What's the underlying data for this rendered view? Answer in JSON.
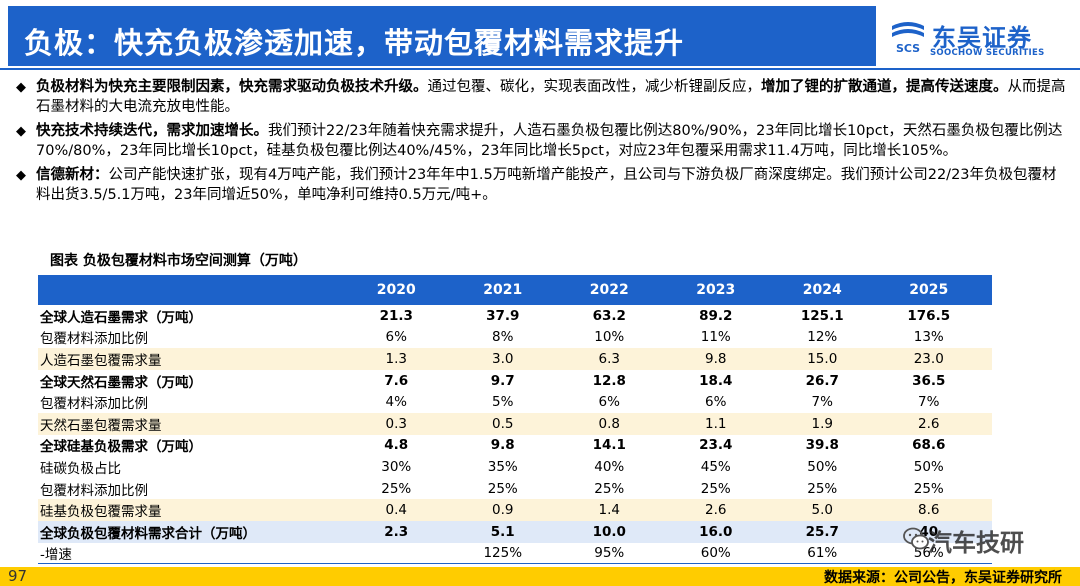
{
  "header": {
    "title": "负极：快充负极渗透加速，带动包覆材料需求提升",
    "logo_cn": "东吴证券",
    "logo_en": "SOOCHOW SECURITIES",
    "logo_mark_text": "SCS"
  },
  "bullets": [
    {
      "parts": [
        {
          "text": "负极材料为快充主要限制因素，快充需求驱动负极技术升级。",
          "bold": true
        },
        {
          "text": "通过包覆、碳化，实现表面改性，减少析锂副反应，",
          "bold": false
        },
        {
          "text": "增加了锂的扩散通道，提高传送速度。",
          "bold": true
        },
        {
          "text": "从而提高石墨材料的大电流充放电性能。",
          "bold": false
        }
      ]
    },
    {
      "parts": [
        {
          "text": "快充技术持续迭代，需求加速增长。",
          "bold": true
        },
        {
          "text": "我们预计22/23年随着快充需求提升，人造石墨负极包覆比例达80%/90%，23年同比增长10pct，天然石墨负极包覆比例达70%/80%，23年同比增长10pct，硅基负极包覆比例达40%/45%，23年同比增长5pct，对应23年包覆采用需求11.4万吨，同比增长105%。",
          "bold": false
        }
      ]
    },
    {
      "parts": [
        {
          "text": "信德新材：",
          "bold": true
        },
        {
          "text": "公司产能快速扩张，现有4万吨产能，我们预计23年年中1.5万吨新增产能投产，且公司与下游负极厂商深度绑定。我们预计公司22/23年负极包覆材料出货3.5/5.1万吨，23年同增近50%，单吨净利可维持0.5万元/吨+。",
          "bold": false
        }
      ]
    }
  ],
  "bullet_mark": "◆",
  "table": {
    "caption": "图表 负极包覆材料市场空间测算（万吨）",
    "years": [
      "2020",
      "2021",
      "2022",
      "2023",
      "2024",
      "2025"
    ],
    "rows": [
      {
        "label": "全球人造石墨需求（万吨）",
        "values": [
          "21.3",
          "37.9",
          "63.2",
          "89.2",
          "125.1",
          "176.5"
        ],
        "bold": true,
        "shade": false
      },
      {
        "label": "包覆材料添加比例",
        "values": [
          "6%",
          "8%",
          "10%",
          "11%",
          "12%",
          "13%"
        ],
        "bold": false,
        "shade": false
      },
      {
        "label": "人造石墨包覆需求量",
        "values": [
          "1.3",
          "3.0",
          "6.3",
          "9.8",
          "15.0",
          "23.0"
        ],
        "bold": false,
        "shade": true
      },
      {
        "label": "全球天然石墨需求（万吨）",
        "values": [
          "7.6",
          "9.7",
          "12.8",
          "18.4",
          "26.7",
          "36.5"
        ],
        "bold": true,
        "shade": false
      },
      {
        "label": "包覆材料添加比例",
        "values": [
          "4%",
          "5%",
          "6%",
          "6%",
          "7%",
          "7%"
        ],
        "bold": false,
        "shade": false
      },
      {
        "label": "天然石墨包覆需求量",
        "values": [
          "0.3",
          "0.5",
          "0.8",
          "1.1",
          "1.9",
          "2.6"
        ],
        "bold": false,
        "shade": true
      },
      {
        "label": "全球硅基负极需求（万吨）",
        "values": [
          "4.8",
          "9.8",
          "14.1",
          "23.4",
          "39.8",
          "68.6"
        ],
        "bold": true,
        "shade": false
      },
      {
        "label": "硅碳负极占比",
        "values": [
          "30%",
          "35%",
          "40%",
          "45%",
          "50%",
          "50%"
        ],
        "bold": false,
        "shade": false
      },
      {
        "label": "包覆材料添加比例",
        "values": [
          "25%",
          "25%",
          "25%",
          "25%",
          "25%",
          "25%"
        ],
        "bold": false,
        "shade": false
      },
      {
        "label": "硅基负极包覆需求量",
        "values": [
          "0.4",
          "0.9",
          "1.4",
          "2.6",
          "5.0",
          "8.6"
        ],
        "bold": false,
        "shade": true
      },
      {
        "label": "全球负极包覆材料需求合计（万吨）",
        "values": [
          "2.3",
          "5.1",
          "10.0",
          "16.0",
          "25.7",
          "40"
        ],
        "bold": true,
        "shade": false,
        "total": true
      },
      {
        "label": "-增速",
        "values": [
          "",
          "125%",
          "95%",
          "60%",
          "61%",
          "56%"
        ],
        "bold": false,
        "shade": false,
        "last": true
      }
    ]
  },
  "footer": {
    "page_number": "97",
    "source": "数据来源：公司公告，东吴证券研究所"
  },
  "watermark": {
    "text": "汽车技研",
    "icon": "wechat-icon"
  },
  "colors": {
    "brand_blue": "#1d62c9",
    "shade_row": "#fdf3d9",
    "footer_yellow": "#ffcc00"
  }
}
